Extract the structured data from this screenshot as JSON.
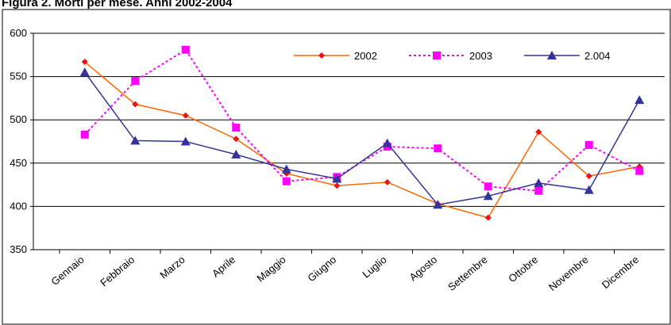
{
  "chart_data": {
    "type": "line",
    "title": "Figura 2. Morti per mese. Anni 2002-2004",
    "categories": [
      "Gennaio",
      "Febbraio",
      "Marzo",
      "Aprile",
      "Maggio",
      "Giugno",
      "Luglio",
      "Agosto",
      "Settembre",
      "Ottobre",
      "Novembre",
      "Dicembre"
    ],
    "series": [
      {
        "name": "2002",
        "color": "#ff6600",
        "marker_color": "#ee1111",
        "marker": "diamond",
        "dash": "solid",
        "values": [
          567,
          518,
          505,
          478,
          438,
          424,
          428,
          403,
          387,
          486,
          435,
          446
        ]
      },
      {
        "name": "2003",
        "color": "#ff00ff",
        "marker_color": "#ff00ff",
        "marker": "square",
        "dash": "dotted",
        "values": [
          483,
          545,
          581,
          491,
          429,
          434,
          469,
          467,
          423,
          418,
          471,
          441
        ]
      },
      {
        "name": "2.004",
        "color": "#333399",
        "marker_color": "#333399",
        "marker": "triangle",
        "dash": "solid",
        "values": [
          555,
          476,
          475,
          460,
          443,
          432,
          473,
          402,
          412,
          427,
          419,
          523
        ]
      }
    ],
    "ylim": [
      350,
      600
    ],
    "yticks": [
      350,
      400,
      450,
      500,
      550,
      600
    ],
    "grid": true,
    "legend": "top"
  }
}
